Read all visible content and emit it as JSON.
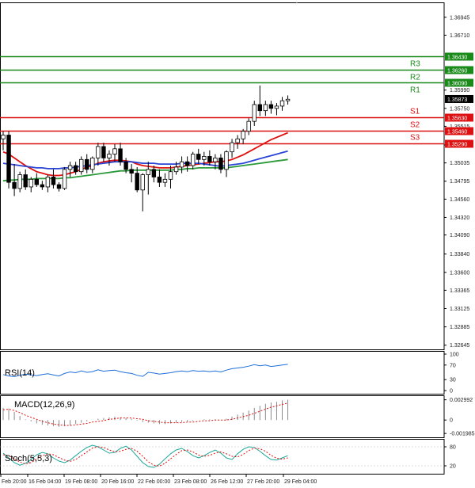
{
  "chart_data": {
    "type": "candlestick",
    "symbol_price_scale": {
      "ticks": [
        "1.36945",
        "1.36710",
        "1.36430",
        "1.36260",
        "1.36090",
        "1.35990",
        "1.35873",
        "1.35750",
        "1.35630",
        "1.35515",
        "1.35460",
        "1.35290",
        "1.35270",
        "1.35035",
        "1.34795",
        "1.34560",
        "1.34320",
        "1.34090",
        "1.33840",
        "1.33600",
        "1.33365",
        "1.33125",
        "1.32885",
        "1.32645"
      ],
      "ylim": [
        1.3259,
        1.3714
      ]
    },
    "current_price": "1.35873",
    "levels": [
      {
        "name": "R3",
        "value": 1.3643,
        "label": "1.36430",
        "color": "#1a8a1a"
      },
      {
        "name": "R2",
        "value": 1.3626,
        "label": "1.36260",
        "color": "#1a8a1a"
      },
      {
        "name": "R1",
        "value": 1.3609,
        "label": "1.36090",
        "color": "#1a8a1a"
      },
      {
        "name": "S1",
        "value": 1.3563,
        "label": "1.35630",
        "color": "#dd1111"
      },
      {
        "name": "S2",
        "value": 1.3546,
        "label": "1.35460",
        "color": "#dd1111"
      },
      {
        "name": "S3",
        "value": 1.3529,
        "label": "1.35290",
        "color": "#dd1111"
      }
    ],
    "time_labels": [
      "Feb 20:00",
      "16 Feb 04:00",
      "19 Feb 08:00",
      "20 Feb 16:00",
      "22 Feb 00:00",
      "23 Feb 08:00",
      "26 Feb 12:00",
      "27 Feb 20:00",
      "29 Feb 04:00"
    ],
    "candles": [
      {
        "o": 1.3535,
        "h": 1.3545,
        "l": 1.352,
        "c": 1.354
      },
      {
        "o": 1.354,
        "h": 1.3545,
        "l": 1.347,
        "c": 1.3478
      },
      {
        "o": 1.3478,
        "h": 1.3502,
        "l": 1.346,
        "c": 1.347
      },
      {
        "o": 1.347,
        "h": 1.3492,
        "l": 1.3465,
        "c": 1.3488
      },
      {
        "o": 1.3488,
        "h": 1.3495,
        "l": 1.3468,
        "c": 1.3472
      },
      {
        "o": 1.3472,
        "h": 1.3485,
        "l": 1.3465,
        "c": 1.3482
      },
      {
        "o": 1.3482,
        "h": 1.349,
        "l": 1.3472,
        "c": 1.3475
      },
      {
        "o": 1.3475,
        "h": 1.348,
        "l": 1.3468,
        "c": 1.3472
      },
      {
        "o": 1.3472,
        "h": 1.3488,
        "l": 1.3465,
        "c": 1.3485
      },
      {
        "o": 1.3485,
        "h": 1.3495,
        "l": 1.347,
        "c": 1.3475
      },
      {
        "o": 1.3475,
        "h": 1.3478,
        "l": 1.3466,
        "c": 1.347
      },
      {
        "o": 1.347,
        "h": 1.3498,
        "l": 1.3468,
        "c": 1.3495
      },
      {
        "o": 1.3495,
        "h": 1.3505,
        "l": 1.3485,
        "c": 1.35
      },
      {
        "o": 1.35,
        "h": 1.3505,
        "l": 1.3488,
        "c": 1.3492
      },
      {
        "o": 1.3492,
        "h": 1.3512,
        "l": 1.3488,
        "c": 1.3508
      },
      {
        "o": 1.3508,
        "h": 1.3515,
        "l": 1.349,
        "c": 1.3495
      },
      {
        "o": 1.3495,
        "h": 1.3512,
        "l": 1.349,
        "c": 1.351
      },
      {
        "o": 1.351,
        "h": 1.353,
        "l": 1.35,
        "c": 1.3525
      },
      {
        "o": 1.3525,
        "h": 1.353,
        "l": 1.3505,
        "c": 1.351
      },
      {
        "o": 1.351,
        "h": 1.352,
        "l": 1.35,
        "c": 1.3515
      },
      {
        "o": 1.3515,
        "h": 1.3528,
        "l": 1.3505,
        "c": 1.3522
      },
      {
        "o": 1.3522,
        "h": 1.353,
        "l": 1.35,
        "c": 1.3505
      },
      {
        "o": 1.3505,
        "h": 1.351,
        "l": 1.349,
        "c": 1.3495
      },
      {
        "o": 1.3495,
        "h": 1.3502,
        "l": 1.3478,
        "c": 1.349
      },
      {
        "o": 1.349,
        "h": 1.3498,
        "l": 1.3465,
        "c": 1.3468
      },
      {
        "o": 1.3468,
        "h": 1.349,
        "l": 1.344,
        "c": 1.3488
      },
      {
        "o": 1.3488,
        "h": 1.3505,
        "l": 1.3462,
        "c": 1.3495
      },
      {
        "o": 1.3495,
        "h": 1.35,
        "l": 1.3478,
        "c": 1.3485
      },
      {
        "o": 1.3485,
        "h": 1.3495,
        "l": 1.3472,
        "c": 1.3478
      },
      {
        "o": 1.3478,
        "h": 1.349,
        "l": 1.3472,
        "c": 1.3482
      },
      {
        "o": 1.3482,
        "h": 1.35,
        "l": 1.347,
        "c": 1.3492
      },
      {
        "o": 1.3492,
        "h": 1.3505,
        "l": 1.3488,
        "c": 1.3498
      },
      {
        "o": 1.3498,
        "h": 1.3512,
        "l": 1.349,
        "c": 1.3505
      },
      {
        "o": 1.3505,
        "h": 1.3512,
        "l": 1.3492,
        "c": 1.35
      },
      {
        "o": 1.35,
        "h": 1.3518,
        "l": 1.3495,
        "c": 1.3515
      },
      {
        "o": 1.3515,
        "h": 1.3522,
        "l": 1.3502,
        "c": 1.3508
      },
      {
        "o": 1.3508,
        "h": 1.3518,
        "l": 1.35,
        "c": 1.3512
      },
      {
        "o": 1.3512,
        "h": 1.352,
        "l": 1.35,
        "c": 1.3505
      },
      {
        "o": 1.3505,
        "h": 1.3515,
        "l": 1.3495,
        "c": 1.351
      },
      {
        "o": 1.351,
        "h": 1.3515,
        "l": 1.349,
        "c": 1.3495
      },
      {
        "o": 1.3495,
        "h": 1.352,
        "l": 1.3485,
        "c": 1.3518
      },
      {
        "o": 1.3518,
        "h": 1.3535,
        "l": 1.351,
        "c": 1.353
      },
      {
        "o": 1.353,
        "h": 1.354,
        "l": 1.3522,
        "c": 1.3535
      },
      {
        "o": 1.3535,
        "h": 1.3548,
        "l": 1.3528,
        "c": 1.3545
      },
      {
        "o": 1.3545,
        "h": 1.3562,
        "l": 1.354,
        "c": 1.3558
      },
      {
        "o": 1.3558,
        "h": 1.3585,
        "l": 1.3552,
        "c": 1.358
      },
      {
        "o": 1.358,
        "h": 1.3605,
        "l": 1.3565,
        "c": 1.3572
      },
      {
        "o": 1.3572,
        "h": 1.3585,
        "l": 1.3565,
        "c": 1.358
      },
      {
        "o": 1.358,
        "h": 1.3585,
        "l": 1.3568,
        "c": 1.3575
      },
      {
        "o": 1.3575,
        "h": 1.3582,
        "l": 1.3566,
        "c": 1.3578
      },
      {
        "o": 1.3578,
        "h": 1.359,
        "l": 1.3572,
        "c": 1.3585
      },
      {
        "o": 1.3585,
        "h": 1.3592,
        "l": 1.358,
        "c": 1.3587
      }
    ],
    "moving_averages": [
      {
        "color": "#e01010",
        "values": [
          1.3518,
          1.3515,
          1.351,
          1.3505,
          1.35,
          1.3496,
          1.3492,
          1.349,
          1.3488,
          1.3487,
          1.3487,
          1.3488,
          1.349,
          1.3492,
          1.3495,
          1.3498,
          1.35,
          1.3503,
          1.3505,
          1.3506,
          1.3507,
          1.3507,
          1.3506,
          1.3505,
          1.3502,
          1.35,
          1.3499,
          1.3498,
          1.3497,
          1.3497,
          1.3497,
          1.3498,
          1.3499,
          1.35,
          1.3501,
          1.3502,
          1.3503,
          1.3504,
          1.3505,
          1.3505,
          1.3506,
          1.3508,
          1.3511,
          1.3514,
          1.3518,
          1.3522,
          1.3526,
          1.353,
          1.3534,
          1.3537,
          1.354,
          1.3543
        ]
      },
      {
        "color": "#2a45d6",
        "values": [
          1.3503,
          1.3502,
          1.3501,
          1.35,
          1.3499,
          1.3498,
          1.3497,
          1.3497,
          1.3496,
          1.3496,
          1.3496,
          1.3497,
          1.3497,
          1.3498,
          1.3499,
          1.35,
          1.3501,
          1.3502,
          1.3503,
          1.3504,
          1.3505,
          1.3505,
          1.3505,
          1.3505,
          1.3504,
          1.3503,
          1.3503,
          1.3503,
          1.3502,
          1.3502,
          1.3502,
          1.3502,
          1.3503,
          1.3503,
          1.3503,
          1.3503,
          1.3502,
          1.3501,
          1.35,
          1.3499,
          1.35,
          1.3501,
          1.3502,
          1.3503,
          1.3505,
          1.3507,
          1.3509,
          1.3511,
          1.3513,
          1.3515,
          1.3517,
          1.3519
        ]
      },
      {
        "color": "#2a9a3a",
        "values": [
          1.348,
          1.3481,
          1.3481,
          1.3482,
          1.3482,
          1.3482,
          1.3483,
          1.3483,
          1.3483,
          1.3483,
          1.3483,
          1.3484,
          1.3484,
          1.3485,
          1.3486,
          1.3487,
          1.3488,
          1.3489,
          1.349,
          1.3491,
          1.3492,
          1.3493,
          1.3493,
          1.3494,
          1.3494,
          1.3494,
          1.3494,
          1.3494,
          1.3494,
          1.3494,
          1.3494,
          1.3495,
          1.3495,
          1.3496,
          1.3496,
          1.3497,
          1.3497,
          1.3497,
          1.3497,
          1.3497,
          1.3497,
          1.3498,
          1.3499,
          1.35,
          1.3501,
          1.3502,
          1.3503,
          1.3504,
          1.3505,
          1.3506,
          1.3507,
          1.3508
        ]
      }
    ],
    "rsi": {
      "title": "RSI(14)",
      "ticks": [
        "100",
        "70",
        "30",
        "0"
      ],
      "ylim": [
        0,
        100
      ],
      "color": "#1e6fd9",
      "values": [
        44,
        40,
        38,
        42,
        45,
        43,
        41,
        44,
        46,
        43,
        40,
        47,
        51,
        49,
        54,
        50,
        52,
        57,
        53,
        55,
        56,
        52,
        49,
        47,
        42,
        39,
        50,
        48,
        45,
        47,
        49,
        52,
        54,
        52,
        55,
        53,
        54,
        52,
        54,
        51,
        56,
        60,
        62,
        64,
        67,
        71,
        68,
        70,
        66,
        68,
        70,
        72
      ]
    },
    "macd": {
      "title": "MACD(12,26,9)",
      "ticks": [
        "0.002992",
        "0",
        "-0.001985"
      ],
      "ylim": [
        -0.0022,
        0.0033
      ],
      "hist_color": "#8a8a8a",
      "signal_color": "#dd1111",
      "hist": [
        0.0018,
        0.0017,
        0.0012,
        0.0006,
        0.0001,
        -0.0002,
        -0.0005,
        -0.0007,
        -0.0008,
        -0.0009,
        -0.001,
        -0.0009,
        -0.0008,
        -0.0006,
        -0.0004,
        -0.0002,
        0.0,
        0.0002,
        0.0003,
        0.0004,
        0.0005,
        0.0004,
        0.0003,
        0.0002,
        -0.0001,
        -0.0003,
        -0.0004,
        -0.0005,
        -0.0006,
        -0.0006,
        -0.0005,
        -0.0004,
        -0.0003,
        -0.0002,
        -0.0001,
        0.0,
        0.0001,
        0.0001,
        0.0001,
        0.0,
        0.0002,
        0.0005,
        0.0008,
        0.0011,
        0.0014,
        0.0018,
        0.0021,
        0.0024,
        0.0026,
        0.0027,
        0.0029,
        0.003
      ],
      "signal": [
        0.0015,
        0.0016,
        0.0014,
        0.0011,
        0.0007,
        0.0004,
        0.0001,
        -0.0002,
        -0.0004,
        -0.0006,
        -0.0007,
        -0.0008,
        -0.0008,
        -0.0007,
        -0.0006,
        -0.0005,
        -0.0003,
        -0.0002,
        -0.0001,
        0.0001,
        0.0002,
        0.0003,
        0.0003,
        0.0003,
        0.0002,
        0.0001,
        -0.0001,
        -0.0002,
        -0.0003,
        -0.0004,
        -0.0004,
        -0.0004,
        -0.0004,
        -0.0003,
        -0.0003,
        -0.0002,
        -0.0001,
        -0.0001,
        0.0,
        0.0,
        0.0,
        0.0001,
        0.0003,
        0.0005,
        0.0007,
        0.001,
        0.0013,
        0.0016,
        0.0019,
        0.0021,
        0.0023,
        0.0025
      ]
    },
    "stoch": {
      "title": "Stoch(5,5,3)",
      "ticks": [
        "80",
        "20"
      ],
      "ylim": [
        0,
        100
      ],
      "main_color": "#1aa89a",
      "signal_color": "#dd1111",
      "main": [
        60,
        45,
        30,
        22,
        28,
        40,
        55,
        62,
        58,
        45,
        35,
        30,
        38,
        52,
        66,
        78,
        85,
        80,
        70,
        60,
        62,
        75,
        82,
        70,
        50,
        30,
        18,
        15,
        25,
        42,
        58,
        70,
        75,
        65,
        52,
        45,
        52,
        62,
        70,
        60,
        45,
        40,
        58,
        72,
        80,
        78,
        66,
        52,
        40,
        38,
        45,
        52
      ],
      "signal": [
        55,
        52,
        42,
        32,
        26,
        30,
        42,
        52,
        58,
        55,
        46,
        38,
        34,
        40,
        52,
        64,
        76,
        80,
        78,
        70,
        64,
        66,
        72,
        75,
        66,
        50,
        33,
        22,
        19,
        28,
        42,
        56,
        68,
        70,
        64,
        54,
        50,
        53,
        60,
        64,
        58,
        50,
        48,
        56,
        68,
        76,
        74,
        66,
        53,
        44,
        41,
        45
      ]
    }
  }
}
